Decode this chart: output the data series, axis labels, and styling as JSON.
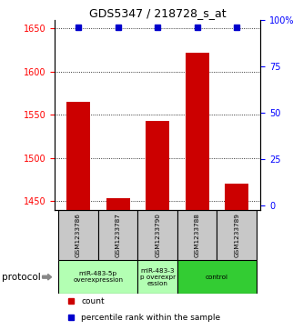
{
  "title": "GDS5347 / 218728_s_at",
  "samples": [
    "GSM1233786",
    "GSM1233787",
    "GSM1233790",
    "GSM1233788",
    "GSM1233789"
  ],
  "counts": [
    1565,
    1453,
    1543,
    1622,
    1470
  ],
  "percentiles": [
    100,
    100,
    100,
    100,
    100
  ],
  "ylim_left": [
    1440,
    1660
  ],
  "ylim_right": [
    -2.27,
    100
  ],
  "yticks_left": [
    1450,
    1500,
    1550,
    1600,
    1650
  ],
  "yticks_right": [
    0,
    25,
    50,
    75,
    100
  ],
  "bar_color": "#cc0000",
  "percentile_color": "#0000cc",
  "protocol_groups": [
    {
      "start": 0,
      "end": 2,
      "label": "miR-483-5p\noverexpression",
      "color": "#b3ffb3"
    },
    {
      "start": 2,
      "end": 3,
      "label": "miR-483-3\np overexpr\nession",
      "color": "#b3ffb3"
    },
    {
      "start": 3,
      "end": 5,
      "label": "control",
      "color": "#33cc33"
    }
  ],
  "legend_count_label": "count",
  "legend_percentile_label": "percentile rank within the sample",
  "protocol_label": "protocol",
  "bar_width": 0.6,
  "percentile_marker_size": 5
}
